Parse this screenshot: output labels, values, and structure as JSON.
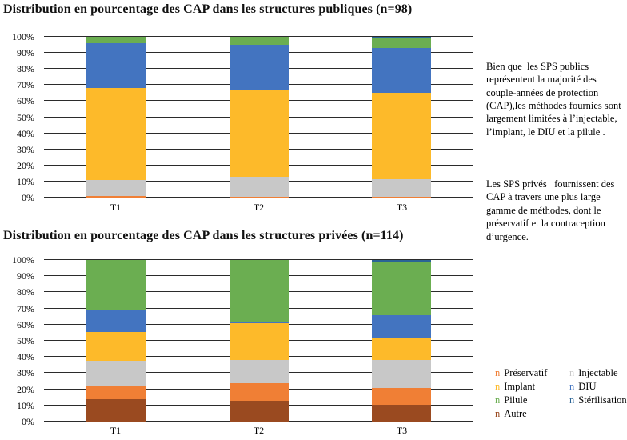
{
  "annotation": {
    "p1": "Bien que  les SPS publics représentent la majorité des couple-années de protection (CAP),les méthodes fournies sont largement limitées à l’injectable, l’implant, le DIU et la pilule .",
    "p2": "Les SPS privés   fournissent des CAP à travers une plus large gamme de méthodes, dont le préservatif et la contraception d’urgence."
  },
  "legend": {
    "marker_glyph": "n",
    "columns": [
      [
        {
          "label": "Préservatif",
          "color": "#F07F35"
        },
        {
          "label": "Implant",
          "color": "#FDBA2A"
        },
        {
          "label": "Pilule",
          "color": "#6BAE51"
        },
        {
          "label": "Autre",
          "color": "#9A4A20"
        }
      ],
      [
        {
          "label": "Injectable",
          "color": "#C8C8C8"
        },
        {
          "label": "DIU",
          "color": "#4374C0"
        },
        {
          "label": "Stérilisation",
          "color": "#2A6496"
        }
      ]
    ]
  },
  "chart_data": [
    {
      "type": "bar",
      "subtype": "stacked-100-percent",
      "title": "Distribution en pourcentage des CAP dans les structures publiques (n=98)",
      "categories": [
        "T1",
        "T2",
        "T3"
      ],
      "y_ticks": [
        "0%",
        "10%",
        "20%",
        "30%",
        "40%",
        "50%",
        "60%",
        "70%",
        "80%",
        "90%",
        "100%"
      ],
      "ylim": [
        0,
        100
      ],
      "grid": true,
      "series": [
        {
          "name": "Autre",
          "color": "#9A4A20",
          "values": [
            0,
            0,
            0
          ]
        },
        {
          "name": "Préservatif",
          "color": "#F07F35",
          "values": [
            1,
            0.5,
            0.5
          ]
        },
        {
          "name": "Injectable",
          "color": "#C8C8C8",
          "values": [
            10,
            12.5,
            11
          ]
        },
        {
          "name": "Implant",
          "color": "#FDBA2A",
          "values": [
            57,
            53.5,
            53.5
          ]
        },
        {
          "name": "DIU",
          "color": "#4374C0",
          "values": [
            28,
            28.5,
            28
          ]
        },
        {
          "name": "Pilule",
          "color": "#6BAE51",
          "values": [
            4,
            5,
            6
          ]
        },
        {
          "name": "Stérilisation",
          "color": "#2A6496",
          "values": [
            0,
            0,
            1
          ]
        }
      ]
    },
    {
      "type": "bar",
      "subtype": "stacked-100-percent",
      "title": "Distribution en pourcentage des CAP dans les structures privées (n=114)",
      "categories": [
        "T1",
        "T2",
        "T3"
      ],
      "y_ticks": [
        "0%",
        "10%",
        "20%",
        "30%",
        "40%",
        "50%",
        "60%",
        "70%",
        "80%",
        "90%",
        "100%"
      ],
      "ylim": [
        0,
        100
      ],
      "grid": true,
      "series": [
        {
          "name": "Autre",
          "color": "#9A4A20",
          "values": [
            14,
            13,
            10.5
          ]
        },
        {
          "name": "Préservatif",
          "color": "#F07F35",
          "values": [
            8.5,
            11,
            10.5
          ]
        },
        {
          "name": "Injectable",
          "color": "#C8C8C8",
          "values": [
            15,
            14,
            17
          ]
        },
        {
          "name": "Implant",
          "color": "#FDBA2A",
          "values": [
            18,
            23,
            14
          ]
        },
        {
          "name": "DIU",
          "color": "#4374C0",
          "values": [
            13.5,
            1,
            14
          ]
        },
        {
          "name": "Pilule",
          "color": "#6BAE51",
          "values": [
            31,
            38,
            33
          ]
        },
        {
          "name": "Stérilisation",
          "color": "#2A6496",
          "values": [
            0,
            0,
            1
          ]
        }
      ]
    }
  ]
}
